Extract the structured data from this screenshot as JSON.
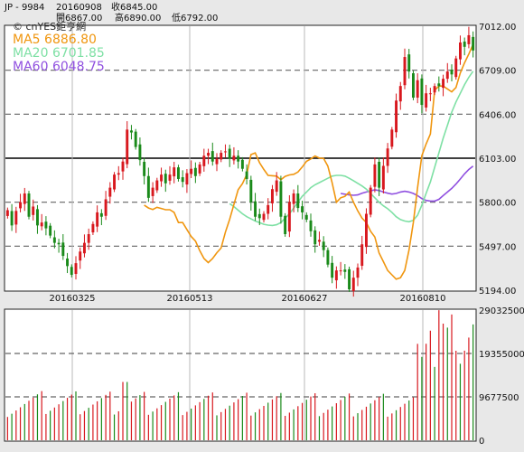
{
  "header": {
    "symbol": "JP - 9984",
    "date": "20160908",
    "close_label": "收6845.00",
    "open_label": "開6867.00",
    "high_label": "高6890.00",
    "low_label": "低6792.00"
  },
  "brand": "© cnYES鉅亨網",
  "colors": {
    "background": "#ffffff",
    "up": "#d8181e",
    "down": "#1a8a1a",
    "ma5": "#f0960f",
    "ma20": "#7ee0a4",
    "ma60": "#9050e0",
    "volume": "#d8181e"
  },
  "chart_data": [
    {
      "type": "candlestick",
      "title": "",
      "legend": [
        {
          "name": "MA5",
          "value": "6886.80",
          "color": "#f0960f"
        },
        {
          "name": "MA20",
          "value": "6701.85",
          "color": "#7ee0a4"
        },
        {
          "name": "MA60",
          "value": "6048.75",
          "color": "#9050e0"
        }
      ],
      "y_ticks": [
        "7012.00",
        "6709.00",
        "6406.00",
        "6103.00",
        "5800.00",
        "5497.00",
        "5194.00"
      ],
      "ylim": [
        5194,
        7012
      ],
      "x_ticks": [
        "20160325",
        "20160513",
        "20160627",
        "20160810"
      ],
      "close": [
        5745,
        5640,
        5740,
        5800,
        5860,
        5700,
        5770,
        5640,
        5660,
        5620,
        5570,
        5520,
        5510,
        5430,
        5360,
        5300,
        5380,
        5460,
        5520,
        5580,
        5650,
        5730,
        5700,
        5820,
        5900,
        5990,
        6000,
        6080,
        6300,
        6280,
        6180,
        6090,
        5980,
        5830,
        5900,
        5950,
        5990,
        5930,
        5990,
        6040,
        5960,
        5940,
        6000,
        6030,
        5980,
        6060,
        6120,
        6140,
        6080,
        6100,
        6140,
        6150,
        6100,
        6120,
        6080,
        6030,
        5960,
        5800,
        5700,
        5690,
        5720,
        5780,
        5890,
        5950,
        5700,
        5580,
        5800,
        5860,
        5760,
        5730,
        5680,
        5600,
        5510,
        5540,
        5470,
        5370,
        5280,
        5330,
        5330,
        5320,
        5200,
        5280,
        5350,
        5510,
        5720,
        5900,
        6060,
        5900,
        6050,
        6170,
        6300,
        6500,
        6600,
        6800,
        6700,
        6520,
        6640,
        6470,
        6550,
        6550,
        6600,
        6600,
        6650,
        6700,
        6680,
        6790,
        6900,
        6870,
        6950,
        6845
      ],
      "ma5": [
        5780,
        5760,
        5750,
        5765,
        5757,
        5748,
        5748,
        5730,
        5660,
        5660,
        5612,
        5564,
        5532,
        5466,
        5412,
        5384,
        5412,
        5452,
        5484,
        5594,
        5682,
        5784,
        5886,
        5928,
        5990,
        6128,
        6140,
        6072,
        6026,
        5985,
        5982,
        5980,
        5955,
        5978,
        5988,
        5992,
        6008,
        6042,
        6082,
        6098,
        6118,
        6104,
        6102,
        6048,
        5934,
        5800,
        5830,
        5840,
        5870,
        5800,
        5740,
        5690,
        5660,
        5600,
        5560,
        5450,
        5390,
        5330,
        5300,
        5270,
        5280,
        5330,
        5470,
        5660,
        5900,
        6120,
        6200,
        6270,
        6570,
        6600,
        6600,
        6580,
        6560,
        6590,
        6690,
        6760,
        6820,
        6887
      ],
      "ma20": [
        5790,
        5770,
        5745,
        5720,
        5700,
        5685,
        5670,
        5660,
        5648,
        5642,
        5640,
        5645,
        5660,
        5690,
        5720,
        5760,
        5800,
        5840,
        5870,
        5900,
        5920,
        5935,
        5950,
        5965,
        5980,
        5985,
        5985,
        5980,
        5965,
        5948,
        5930,
        5912,
        5890,
        5860,
        5830,
        5800,
        5775,
        5755,
        5730,
        5700,
        5680,
        5670,
        5665,
        5675,
        5710,
        5780,
        5860,
        5940,
        6040,
        6140,
        6240,
        6330,
        6420,
        6490,
        6550,
        6610,
        6660,
        6702
      ],
      "ma60": [
        5860,
        5855,
        5850,
        5848,
        5850,
        5862,
        5870,
        5878,
        5885,
        5880,
        5870,
        5862,
        5856,
        5860,
        5870,
        5875,
        5870,
        5860,
        5845,
        5825,
        5812,
        5808,
        5808,
        5820,
        5845,
        5870,
        5895,
        5925,
        5960,
        5995,
        6025,
        6049
      ],
      "volume_series": {
        "ylim": [
          0,
          29032500
        ],
        "y_ticks": [
          "29032500",
          "19355000",
          "9677500",
          "0"
        ]
      }
    }
  ]
}
